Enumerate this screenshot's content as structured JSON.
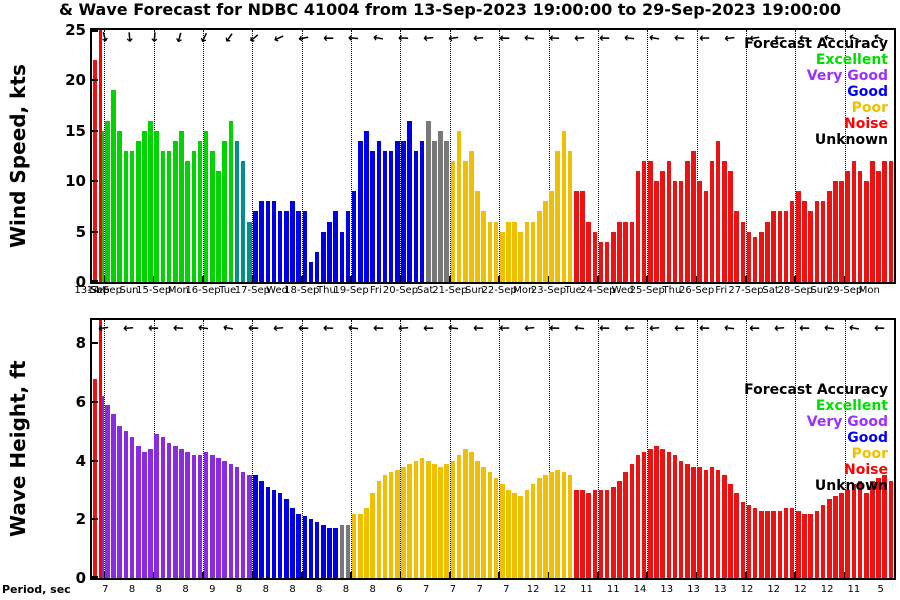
{
  "title": "& Wave Forecast for NDBC 41004 from 13-Sep-2023 19:00:00 to 29-Sep-2023 19:00:00",
  "legend": {
    "title": "Forecast Accuracy",
    "items": [
      {
        "label": "Excellent",
        "color": "#00dd00"
      },
      {
        "label": "Very Good",
        "color": "#9b30ff"
      },
      {
        "label": "Good",
        "color": "#0000ff"
      },
      {
        "label": "Poor",
        "color": "#f0c000"
      },
      {
        "label": "Noise",
        "color": "#ff0000"
      },
      {
        "label": "Unknown",
        "color": "#000000"
      }
    ]
  },
  "accuracy_colors": {
    "E": "#00d400",
    "T": "#008f8f",
    "G": "#0000e8",
    "V": "#8a2be2",
    "P": "#f0c000",
    "N": "#ee1111",
    "U": "#787878"
  },
  "x_axis": {
    "total_slots": 130,
    "now_slot": 1.3,
    "day_gridline_slots": [
      2,
      10,
      18,
      26,
      34,
      42,
      50,
      58,
      66,
      74,
      82,
      90,
      98,
      106,
      114,
      122
    ],
    "date_labels": [
      {
        "label": "13-Sep",
        "slot": 0
      },
      {
        "label": "14-Sep",
        "slot": 2
      },
      {
        "label": "15-Sep",
        "slot": 10
      },
      {
        "label": "16-Sep",
        "slot": 18
      },
      {
        "label": "17-Sep",
        "slot": 26
      },
      {
        "label": "18-Sep",
        "slot": 34
      },
      {
        "label": "19-Sep",
        "slot": 42
      },
      {
        "label": "20-Sep",
        "slot": 50
      },
      {
        "label": "21-Sep",
        "slot": 58
      },
      {
        "label": "22-Sep",
        "slot": 66
      },
      {
        "label": "23-Sep",
        "slot": 74
      },
      {
        "label": "24-Sep",
        "slot": 82
      },
      {
        "label": "25-Sep",
        "slot": 90
      },
      {
        "label": "26-Sep",
        "slot": 98
      },
      {
        "label": "27-Sep",
        "slot": 106
      },
      {
        "label": "28-Sep",
        "slot": 114
      },
      {
        "label": "29-Sep",
        "slot": 122
      }
    ],
    "weekday_labels": [
      {
        "label": "Sat",
        "slot": 1
      },
      {
        "label": "Sun",
        "slot": 6
      },
      {
        "label": "Mon",
        "slot": 14
      },
      {
        "label": "Tue",
        "slot": 22
      },
      {
        "label": "Wed",
        "slot": 30
      },
      {
        "label": "Thu",
        "slot": 38
      },
      {
        "label": "Fri",
        "slot": 46
      },
      {
        "label": "Sat",
        "slot": 54
      },
      {
        "label": "Sun",
        "slot": 62
      },
      {
        "label": "Mon",
        "slot": 70
      },
      {
        "label": "Tue",
        "slot": 78
      },
      {
        "label": "Wed",
        "slot": 86
      },
      {
        "label": "Thu",
        "slot": 94
      },
      {
        "label": "Fri",
        "slot": 102
      },
      {
        "label": "Sat",
        "slot": 110
      },
      {
        "label": "Sun",
        "slot": 118
      },
      {
        "label": "Mon",
        "slot": 126
      }
    ]
  },
  "chart_data": [
    {
      "type": "bar",
      "name": "wind_speed",
      "ylabel": "Wind Speed, kts",
      "unit": "kts",
      "ylim": [
        0,
        25
      ],
      "yticks": [
        0,
        5,
        10,
        15,
        20,
        25
      ],
      "bar_interval_hours": 3,
      "bars": [
        [
          22,
          "N"
        ],
        [
          15,
          "E"
        ],
        [
          16,
          "E"
        ],
        [
          19,
          "E"
        ],
        [
          15,
          "E"
        ],
        [
          13,
          "E"
        ],
        [
          13,
          "E"
        ],
        [
          14,
          "E"
        ],
        [
          15,
          "E"
        ],
        [
          16,
          "E"
        ],
        [
          15,
          "E"
        ],
        [
          13,
          "E"
        ],
        [
          13,
          "E"
        ],
        [
          14,
          "E"
        ],
        [
          15,
          "E"
        ],
        [
          12,
          "E"
        ],
        [
          13,
          "E"
        ],
        [
          14,
          "E"
        ],
        [
          15,
          "E"
        ],
        [
          13,
          "E"
        ],
        [
          11,
          "E"
        ],
        [
          14,
          "E"
        ],
        [
          16,
          "E"
        ],
        [
          14,
          "T"
        ],
        [
          12,
          "T"
        ],
        [
          6,
          "T"
        ],
        [
          7,
          "G"
        ],
        [
          8,
          "G"
        ],
        [
          8,
          "G"
        ],
        [
          8,
          "G"
        ],
        [
          7,
          "G"
        ],
        [
          7,
          "G"
        ],
        [
          8,
          "G"
        ],
        [
          7,
          "G"
        ],
        [
          7,
          "G"
        ],
        [
          2,
          "G"
        ],
        [
          3,
          "G"
        ],
        [
          5,
          "G"
        ],
        [
          6,
          "G"
        ],
        [
          7,
          "G"
        ],
        [
          5,
          "G"
        ],
        [
          7,
          "G"
        ],
        [
          9,
          "G"
        ],
        [
          14,
          "G"
        ],
        [
          15,
          "G"
        ],
        [
          13,
          "G"
        ],
        [
          14,
          "G"
        ],
        [
          13,
          "G"
        ],
        [
          13,
          "G"
        ],
        [
          14,
          "G"
        ],
        [
          14,
          "G"
        ],
        [
          16,
          "G"
        ],
        [
          13,
          "G"
        ],
        [
          14,
          "G"
        ],
        [
          16,
          "U"
        ],
        [
          14,
          "U"
        ],
        [
          15,
          "U"
        ],
        [
          14,
          "U"
        ],
        [
          12,
          "P"
        ],
        [
          15,
          "P"
        ],
        [
          12,
          "P"
        ],
        [
          13,
          "P"
        ],
        [
          9,
          "P"
        ],
        [
          7,
          "P"
        ],
        [
          6,
          "P"
        ],
        [
          6,
          "P"
        ],
        [
          5,
          "P"
        ],
        [
          6,
          "P"
        ],
        [
          6,
          "P"
        ],
        [
          5,
          "P"
        ],
        [
          6,
          "P"
        ],
        [
          6,
          "P"
        ],
        [
          7,
          "P"
        ],
        [
          8,
          "P"
        ],
        [
          9,
          "P"
        ],
        [
          13,
          "P"
        ],
        [
          15,
          "P"
        ],
        [
          13,
          "P"
        ],
        [
          9,
          "N"
        ],
        [
          9,
          "N"
        ],
        [
          6,
          "N"
        ],
        [
          5,
          "N"
        ],
        [
          4,
          "N"
        ],
        [
          4,
          "N"
        ],
        [
          5,
          "N"
        ],
        [
          6,
          "N"
        ],
        [
          6,
          "N"
        ],
        [
          6,
          "N"
        ],
        [
          11,
          "N"
        ],
        [
          12,
          "N"
        ],
        [
          12,
          "N"
        ],
        [
          10,
          "N"
        ],
        [
          11,
          "N"
        ],
        [
          12,
          "N"
        ],
        [
          10,
          "N"
        ],
        [
          10,
          "N"
        ],
        [
          12,
          "N"
        ],
        [
          13,
          "N"
        ],
        [
          10,
          "N"
        ],
        [
          9,
          "N"
        ],
        [
          12,
          "N"
        ],
        [
          14,
          "N"
        ],
        [
          12,
          "N"
        ],
        [
          11,
          "N"
        ],
        [
          7,
          "N"
        ],
        [
          6,
          "N"
        ],
        [
          5,
          "N"
        ],
        [
          4.5,
          "N"
        ],
        [
          5,
          "N"
        ],
        [
          6,
          "N"
        ],
        [
          7,
          "N"
        ],
        [
          7,
          "N"
        ],
        [
          7,
          "N"
        ],
        [
          8,
          "N"
        ],
        [
          9,
          "N"
        ],
        [
          8,
          "N"
        ],
        [
          7,
          "N"
        ],
        [
          8,
          "N"
        ],
        [
          8,
          "N"
        ],
        [
          9,
          "N"
        ],
        [
          10,
          "N"
        ],
        [
          10,
          "N"
        ],
        [
          11,
          "N"
        ],
        [
          12,
          "N"
        ],
        [
          11,
          "N"
        ],
        [
          10,
          "N"
        ],
        [
          12,
          "N"
        ],
        [
          11,
          "N"
        ],
        [
          12,
          "N"
        ],
        [
          12,
          "N"
        ]
      ]
    },
    {
      "type": "bar",
      "name": "wave_height",
      "ylabel": "Wave Height, ft",
      "unit": "ft",
      "ylim": [
        0,
        8.8
      ],
      "yticks": [
        0,
        2,
        4,
        6,
        8
      ],
      "bar_interval_hours": 3,
      "bars": [
        [
          6.8,
          "N"
        ],
        [
          6.2,
          "V"
        ],
        [
          5.9,
          "V"
        ],
        [
          5.6,
          "V"
        ],
        [
          5.2,
          "V"
        ],
        [
          5.0,
          "V"
        ],
        [
          4.8,
          "V"
        ],
        [
          4.5,
          "V"
        ],
        [
          4.3,
          "V"
        ],
        [
          4.4,
          "V"
        ],
        [
          4.9,
          "V"
        ],
        [
          4.8,
          "V"
        ],
        [
          4.6,
          "V"
        ],
        [
          4.5,
          "V"
        ],
        [
          4.4,
          "V"
        ],
        [
          4.3,
          "V"
        ],
        [
          4.2,
          "V"
        ],
        [
          4.2,
          "V"
        ],
        [
          4.3,
          "V"
        ],
        [
          4.2,
          "V"
        ],
        [
          4.1,
          "V"
        ],
        [
          4.0,
          "V"
        ],
        [
          3.9,
          "V"
        ],
        [
          3.8,
          "V"
        ],
        [
          3.6,
          "V"
        ],
        [
          3.5,
          "V"
        ],
        [
          3.5,
          "G"
        ],
        [
          3.3,
          "G"
        ],
        [
          3.1,
          "G"
        ],
        [
          3.0,
          "G"
        ],
        [
          2.9,
          "G"
        ],
        [
          2.7,
          "G"
        ],
        [
          2.4,
          "G"
        ],
        [
          2.2,
          "G"
        ],
        [
          2.1,
          "G"
        ],
        [
          2.0,
          "G"
        ],
        [
          1.9,
          "G"
        ],
        [
          1.8,
          "G"
        ],
        [
          1.7,
          "G"
        ],
        [
          1.7,
          "G"
        ],
        [
          1.8,
          "U"
        ],
        [
          1.8,
          "U"
        ],
        [
          2.2,
          "P"
        ],
        [
          2.2,
          "P"
        ],
        [
          2.4,
          "P"
        ],
        [
          2.9,
          "P"
        ],
        [
          3.3,
          "P"
        ],
        [
          3.5,
          "P"
        ],
        [
          3.6,
          "P"
        ],
        [
          3.7,
          "P"
        ],
        [
          3.8,
          "P"
        ],
        [
          3.9,
          "P"
        ],
        [
          4.0,
          "P"
        ],
        [
          4.1,
          "P"
        ],
        [
          4.0,
          "P"
        ],
        [
          3.9,
          "P"
        ],
        [
          3.8,
          "P"
        ],
        [
          3.9,
          "P"
        ],
        [
          4.0,
          "P"
        ],
        [
          4.2,
          "P"
        ],
        [
          4.4,
          "P"
        ],
        [
          4.3,
          "P"
        ],
        [
          4.0,
          "P"
        ],
        [
          3.8,
          "P"
        ],
        [
          3.6,
          "P"
        ],
        [
          3.4,
          "P"
        ],
        [
          3.2,
          "P"
        ],
        [
          3.0,
          "P"
        ],
        [
          2.9,
          "P"
        ],
        [
          2.8,
          "P"
        ],
        [
          3.0,
          "P"
        ],
        [
          3.2,
          "P"
        ],
        [
          3.4,
          "P"
        ],
        [
          3.5,
          "P"
        ],
        [
          3.6,
          "P"
        ],
        [
          3.7,
          "P"
        ],
        [
          3.6,
          "P"
        ],
        [
          3.5,
          "P"
        ],
        [
          3.0,
          "N"
        ],
        [
          3.0,
          "N"
        ],
        [
          2.9,
          "N"
        ],
        [
          3.0,
          "N"
        ],
        [
          3.0,
          "N"
        ],
        [
          3.0,
          "N"
        ],
        [
          3.1,
          "N"
        ],
        [
          3.3,
          "N"
        ],
        [
          3.6,
          "N"
        ],
        [
          3.9,
          "N"
        ],
        [
          4.2,
          "N"
        ],
        [
          4.3,
          "N"
        ],
        [
          4.4,
          "N"
        ],
        [
          4.5,
          "N"
        ],
        [
          4.4,
          "N"
        ],
        [
          4.3,
          "N"
        ],
        [
          4.2,
          "N"
        ],
        [
          4.0,
          "N"
        ],
        [
          3.9,
          "N"
        ],
        [
          3.8,
          "N"
        ],
        [
          3.8,
          "N"
        ],
        [
          3.7,
          "N"
        ],
        [
          3.8,
          "N"
        ],
        [
          3.7,
          "N"
        ],
        [
          3.5,
          "N"
        ],
        [
          3.2,
          "N"
        ],
        [
          2.9,
          "N"
        ],
        [
          2.6,
          "N"
        ],
        [
          2.5,
          "N"
        ],
        [
          2.4,
          "N"
        ],
        [
          2.3,
          "N"
        ],
        [
          2.3,
          "N"
        ],
        [
          2.3,
          "N"
        ],
        [
          2.3,
          "N"
        ],
        [
          2.4,
          "N"
        ],
        [
          2.4,
          "N"
        ],
        [
          2.3,
          "N"
        ],
        [
          2.2,
          "N"
        ],
        [
          2.2,
          "N"
        ],
        [
          2.3,
          "N"
        ],
        [
          2.5,
          "N"
        ],
        [
          2.7,
          "N"
        ],
        [
          2.8,
          "N"
        ],
        [
          2.9,
          "N"
        ],
        [
          3.0,
          "N"
        ],
        [
          3.2,
          "N"
        ],
        [
          3.3,
          "N"
        ],
        [
          2.9,
          "N"
        ],
        [
          3.3,
          "N"
        ],
        [
          3.4,
          "N"
        ],
        [
          3.5,
          "N"
        ],
        [
          3.3,
          "N"
        ]
      ]
    }
  ],
  "period_axis": {
    "label": "Period, sec",
    "values": [
      7,
      8,
      8,
      8,
      9,
      8,
      8,
      8,
      8,
      8,
      8,
      6,
      7,
      7,
      7,
      7,
      12,
      12,
      11,
      11,
      14,
      13,
      13,
      13,
      12,
      12,
      12,
      12,
      11,
      5
    ]
  },
  "wind_direction_arrows_deg": [
    75,
    85,
    95,
    105,
    115,
    125,
    140,
    155,
    170,
    180,
    185,
    190,
    182,
    175,
    172,
    176,
    180,
    186,
    182,
    176,
    181,
    186,
    190,
    184,
    179,
    174,
    171,
    177,
    183,
    192,
    201,
    208
  ],
  "wave_direction_arrows_deg": [
    172,
    176,
    181,
    183,
    187,
    190,
    181,
    176,
    180,
    182,
    186,
    181,
    176,
    180,
    186,
    181,
    179,
    175,
    181,
    186,
    181,
    179,
    176,
    180,
    181,
    186,
    180,
    176,
    181,
    186,
    191,
    181
  ]
}
